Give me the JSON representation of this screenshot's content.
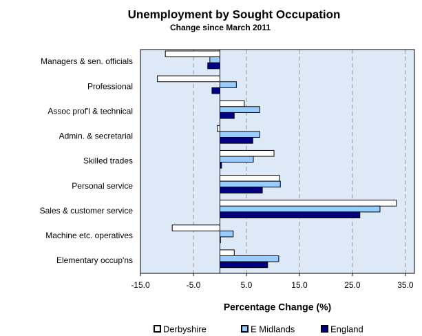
{
  "chart_data": {
    "type": "hbar",
    "title": "Unemployment by Sought Occupation",
    "subtitle": "Change since March 2011",
    "x_label": "Percentage Change (%)",
    "categories": [
      "Managers & sen. officials",
      "Professional",
      "Assoc prof'l & technical",
      "Admin. & secretarial",
      "Skilled trades",
      "Personal service",
      "Sales & customer service",
      "Machine etc. operatives",
      "Elementary occup'ns"
    ],
    "series": [
      {
        "name": "Derbyshire",
        "color": "#ffffff",
        "values": [
          -10.3,
          -11.8,
          4.6,
          -0.5,
          10.2,
          11.2,
          33.3,
          -9.0,
          2.7
        ]
      },
      {
        "name": "E Midlands",
        "color": "#99ccff",
        "values": [
          -1.9,
          3.1,
          7.5,
          7.5,
          6.3,
          11.4,
          30.2,
          2.5,
          11.1
        ]
      },
      {
        "name": "England",
        "color": "#000080",
        "values": [
          -2.3,
          -1.5,
          2.7,
          6.2,
          0.3,
          8.0,
          26.4,
          0.1,
          9.0
        ]
      }
    ],
    "xlim": [
      -15,
      36.7
    ],
    "xticks": [
      {
        "value": -15,
        "label": "-15.0"
      },
      {
        "value": -5,
        "label": "-5.0"
      },
      {
        "value": 5,
        "label": "5.0"
      },
      {
        "value": 15,
        "label": "15.0"
      },
      {
        "value": 25,
        "label": "25.0"
      },
      {
        "value": 35,
        "label": "35.0"
      }
    ],
    "grid": true,
    "legend": "bottom"
  }
}
